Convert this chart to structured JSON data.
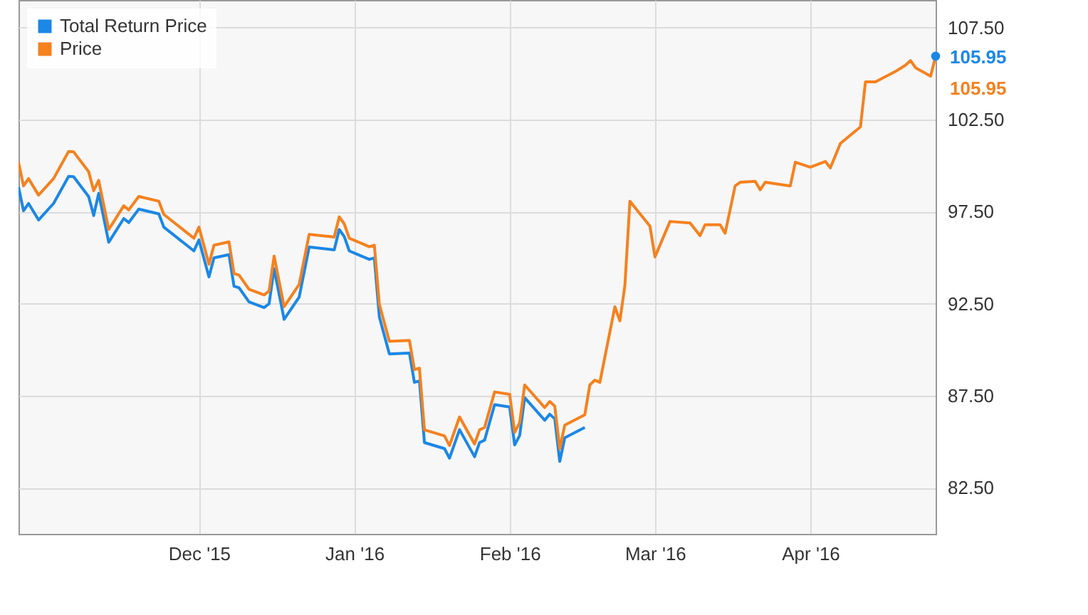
{
  "chart_data": {
    "type": "line",
    "x": [
      "2015-10-26",
      "2015-10-27",
      "2015-10-28",
      "2015-10-30",
      "2015-11-02",
      "2015-11-05",
      "2015-11-06",
      "2015-11-09",
      "2015-11-10",
      "2015-11-11",
      "2015-11-13",
      "2015-11-16",
      "2015-11-17",
      "2015-11-19",
      "2015-11-23",
      "2015-11-24",
      "2015-11-30",
      "2015-12-01",
      "2015-12-03",
      "2015-12-04",
      "2015-12-07",
      "2015-12-08",
      "2015-12-09",
      "2015-12-11",
      "2015-12-14",
      "2015-12-15",
      "2015-12-16",
      "2015-12-18",
      "2015-12-21",
      "2015-12-23",
      "2015-12-28",
      "2015-12-29",
      "2015-12-30",
      "2015-12-31",
      "2016-01-04",
      "2016-01-05",
      "2016-01-06",
      "2016-01-08",
      "2016-01-12",
      "2016-01-13",
      "2016-01-14",
      "2016-01-15",
      "2016-01-19",
      "2016-01-20",
      "2016-01-22",
      "2016-01-25",
      "2016-01-26",
      "2016-01-27",
      "2016-01-29",
      "2016-02-01",
      "2016-02-02",
      "2016-02-03",
      "2016-02-04",
      "2016-02-08",
      "2016-02-09",
      "2016-02-10",
      "2016-02-11",
      "2016-02-12",
      "2016-02-16",
      "2016-02-17",
      "2016-02-18",
      "2016-02-19",
      "2016-02-22",
      "2016-02-23",
      "2016-02-24",
      "2016-02-25",
      "2016-02-29",
      "2016-03-01",
      "2016-03-04",
      "2016-03-08",
      "2016-03-10",
      "2016-03-11",
      "2016-03-14",
      "2016-03-15",
      "2016-03-17",
      "2016-03-18",
      "2016-03-21",
      "2016-03-22",
      "2016-03-23",
      "2016-03-28",
      "2016-03-29",
      "2016-04-01",
      "2016-04-04",
      "2016-04-05",
      "2016-04-07",
      "2016-04-11",
      "2016-04-12",
      "2016-04-14",
      "2016-04-18",
      "2016-04-20",
      "2016-04-21",
      "2016-04-22",
      "2016-04-25",
      "2016-04-26"
    ],
    "series": [
      {
        "name": "Total Return Price",
        "color": "#1b87e6",
        "values": [
          98.84,
          97.55,
          97.95,
          97.05,
          97.95,
          99.42,
          99.4,
          98.32,
          97.29,
          98.5,
          95.84,
          97.13,
          96.91,
          97.64,
          97.38,
          96.66,
          95.37,
          95.97,
          93.96,
          94.99,
          95.17,
          93.45,
          93.37,
          92.6,
          92.29,
          92.5,
          94.4,
          91.65,
          92.86,
          95.58,
          95.43,
          96.53,
          96.15,
          95.37,
          94.91,
          94.99,
          91.78,
          89.77,
          89.82,
          88.23,
          88.31,
          84.96,
          84.63,
          84.11,
          85.66,
          84.19,
          84.96,
          85.09,
          87.02,
          86.89,
          84.83,
          85.34,
          87.4,
          86.17,
          86.5,
          86.25,
          83.93,
          85.22,
          85.78,
          null,
          null,
          null,
          null,
          null,
          null,
          null,
          null,
          null,
          null,
          null,
          null,
          null,
          null,
          null,
          null,
          null,
          null,
          null,
          null,
          null,
          null,
          null,
          null,
          null,
          null,
          null,
          null,
          null,
          null,
          null,
          null,
          null,
          null,
          105.95
        ],
        "value_labels": [
          null,
          null,
          null,
          null,
          null,
          null,
          null,
          null,
          null,
          null,
          null,
          null,
          null,
          null,
          null,
          null,
          null,
          null,
          null,
          null,
          null,
          null,
          null,
          null,
          null,
          null,
          null,
          null,
          null,
          null,
          null,
          null,
          null,
          null,
          null,
          null,
          null,
          null,
          null,
          null,
          null,
          null,
          null,
          null,
          null,
          null,
          null,
          null,
          null,
          null,
          null,
          null,
          null,
          null,
          null,
          null,
          null,
          null,
          null,
          null,
          null,
          null,
          null,
          null,
          null,
          null,
          null,
          null,
          null,
          null,
          null,
          null,
          null,
          null,
          null,
          null,
          null,
          null,
          null,
          null,
          null,
          null,
          null,
          null,
          null,
          null,
          null,
          null,
          null,
          null,
          null,
          null,
          null,
          "105.95"
        ]
      },
      {
        "name": "Price",
        "color": "#f5811f",
        "values": [
          100.19,
          98.9,
          99.3,
          98.4,
          99.3,
          100.77,
          100.75,
          99.67,
          98.64,
          99.2,
          96.53,
          97.82,
          97.6,
          98.33,
          98.07,
          97.35,
          96.06,
          96.66,
          94.65,
          95.68,
          95.86,
          94.14,
          94.06,
          93.29,
          92.98,
          93.19,
          95.09,
          92.34,
          93.55,
          96.27,
          96.12,
          97.22,
          96.84,
          96.06,
          95.6,
          95.68,
          92.47,
          90.46,
          90.51,
          88.92,
          89.0,
          85.65,
          85.32,
          84.8,
          86.35,
          84.88,
          85.65,
          85.78,
          87.71,
          87.58,
          85.52,
          86.03,
          88.09,
          86.86,
          87.19,
          86.94,
          84.62,
          85.91,
          86.47,
          88.09,
          88.35,
          88.23,
          92.34,
          91.57,
          93.5,
          98.07,
          96.71,
          95.04,
          96.97,
          96.89,
          96.2,
          96.79,
          96.79,
          96.33,
          98.9,
          99.1,
          99.15,
          98.69,
          99.1,
          98.9,
          100.19,
          99.92,
          100.23,
          99.88,
          101.21,
          102.11,
          104.55,
          104.55,
          105.12,
          105.46,
          105.71,
          105.32,
          104.86,
          105.95
        ],
        "value_labels": [
          null,
          null,
          null,
          null,
          null,
          null,
          null,
          null,
          null,
          null,
          null,
          null,
          null,
          null,
          null,
          null,
          null,
          null,
          null,
          null,
          null,
          null,
          null,
          null,
          null,
          null,
          null,
          null,
          null,
          null,
          null,
          null,
          null,
          null,
          null,
          null,
          null,
          null,
          null,
          null,
          null,
          null,
          null,
          null,
          null,
          null,
          null,
          null,
          null,
          null,
          null,
          null,
          null,
          null,
          null,
          null,
          null,
          null,
          null,
          null,
          null,
          null,
          null,
          null,
          null,
          null,
          null,
          null,
          null,
          null,
          null,
          null,
          null,
          null,
          null,
          null,
          null,
          null,
          null,
          null,
          null,
          null,
          null,
          null,
          null,
          null,
          null,
          null,
          null,
          null,
          null,
          null,
          null,
          "105.95"
        ]
      }
    ],
    "xlim": [
      "2015-10-26",
      "2016-04-26"
    ],
    "xticks": [
      {
        "value": "2015-12-01",
        "label": "Dec '15"
      },
      {
        "value": "2016-01-01",
        "label": "Jan '16"
      },
      {
        "value": "2016-02-01",
        "label": "Feb '16"
      },
      {
        "value": "2016-03-01",
        "label": "Mar '16"
      },
      {
        "value": "2016-04-01",
        "label": "Apr '16"
      }
    ],
    "ylim": [
      80,
      109
    ],
    "yticks": [
      {
        "value": 82.5,
        "label": "82.50"
      },
      {
        "value": 87.5,
        "label": "87.50"
      },
      {
        "value": 92.5,
        "label": "92.50"
      },
      {
        "value": 97.5,
        "label": "97.50"
      },
      {
        "value": 102.5,
        "label": "102.50"
      },
      {
        "value": 107.5,
        "label": "107.50"
      }
    ],
    "grid": true,
    "legend": "top left",
    "marker": "none",
    "line_style": "solid"
  }
}
